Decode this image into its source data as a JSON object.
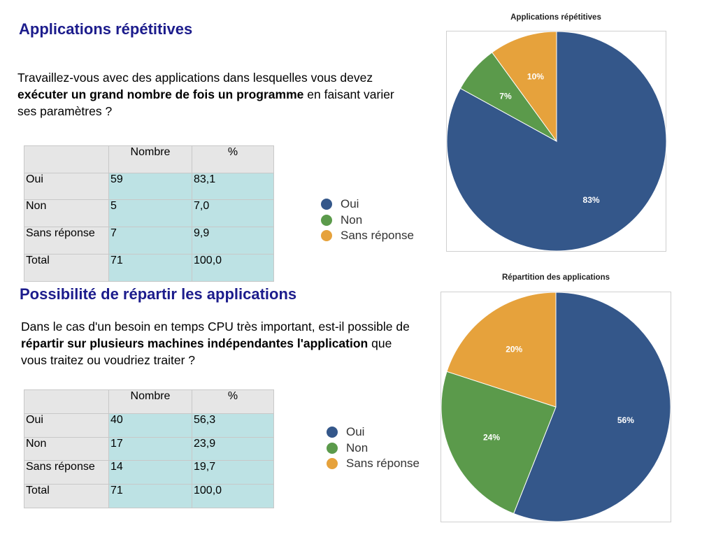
{
  "section1": {
    "title": "Applications répétitives",
    "question_pre": "Travaillez-vous avec des applications dans lesquelles vous devez ",
    "question_bold": "exécuter un grand nombre de fois un programme",
    "question_post": " en faisant varier ses paramètres ?",
    "table": {
      "headers": [
        "",
        "Nombre",
        "%"
      ],
      "rows": [
        [
          "Oui",
          "59",
          "83,1"
        ],
        [
          "Non",
          "5",
          "7,0"
        ],
        [
          "Sans réponse",
          "7",
          "9,9"
        ],
        [
          "Total",
          "71",
          "100,0"
        ]
      ]
    }
  },
  "section2": {
    "title": "Possibilité de répartir les applications",
    "question_pre": "Dans le cas d'un besoin en temps CPU très important, est-il possible de ",
    "question_bold": "répartir sur plusieurs machines indépendantes l'application",
    "question_post": " que vous traitez ou voudriez traiter ?",
    "table": {
      "headers": [
        "",
        "Nombre",
        "%"
      ],
      "rows": [
        [
          "Oui",
          "40",
          "56,3"
        ],
        [
          "Non",
          "17",
          "23,9"
        ],
        [
          "Sans réponse",
          "14",
          "19,7"
        ],
        [
          "Total",
          "71",
          "100,0"
        ]
      ]
    }
  },
  "colors": {
    "oui": "#34578a",
    "non": "#5b9a4b",
    "sans_reponse": "#e6a23c",
    "title": "#1c1c8c"
  },
  "chart_data": [
    {
      "type": "pie",
      "title": "Applications répétitives",
      "categories": [
        "Oui",
        "Non",
        "Sans réponse"
      ],
      "values": [
        83,
        7,
        10
      ],
      "labels": [
        "83%",
        "7%",
        "10%"
      ],
      "colors": [
        "#34578a",
        "#5b9a4b",
        "#e6a23c"
      ],
      "legend": "left"
    },
    {
      "type": "pie",
      "title": "Répartition des applications",
      "categories": [
        "Oui",
        "Non",
        "Sans réponse"
      ],
      "values": [
        56,
        24,
        20
      ],
      "labels": [
        "56%",
        "24%",
        "20%"
      ],
      "colors": [
        "#34578a",
        "#5b9a4b",
        "#e6a23c"
      ],
      "legend": "left"
    }
  ]
}
